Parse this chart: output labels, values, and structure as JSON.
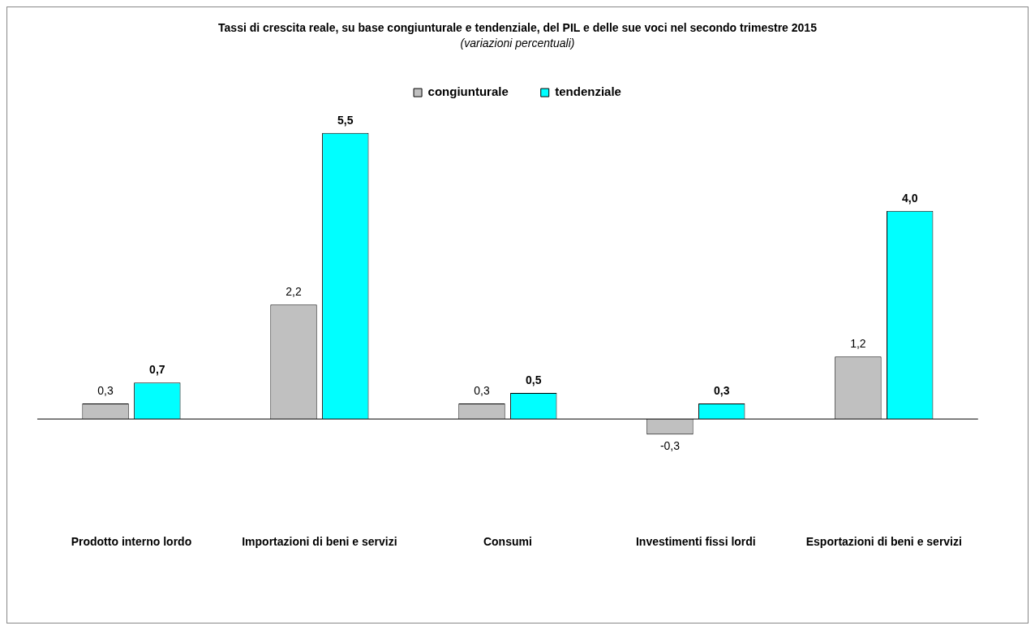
{
  "chart_data": {
    "type": "bar",
    "title": "Tassi di crescita reale, su base congiunturale e tendenziale, del PIL e delle sue voci nel secondo trimestre 2015",
    "subtitle": "(variazioni percentuali)",
    "categories": [
      "Prodotto interno lordo",
      "Importazioni di beni e servizi",
      "Consumi",
      "Investimenti fissi lordi",
      "Esportazioni di beni e servizi"
    ],
    "series": [
      {
        "name": "congiunturale",
        "color": "#c0c0c0",
        "values": [
          0.3,
          2.2,
          0.3,
          -0.3,
          1.2
        ],
        "value_labels": [
          "0,3",
          "2,2",
          "0,3",
          "-0,3",
          "1,2"
        ]
      },
      {
        "name": "tendenziale",
        "color": "#00ffff",
        "values": [
          0.7,
          5.5,
          0.5,
          0.3,
          4.0
        ],
        "value_labels": [
          "0,7",
          "5,5",
          "0,5",
          "0,3",
          "4,0"
        ]
      }
    ],
    "legend": "top",
    "grid": false
  }
}
